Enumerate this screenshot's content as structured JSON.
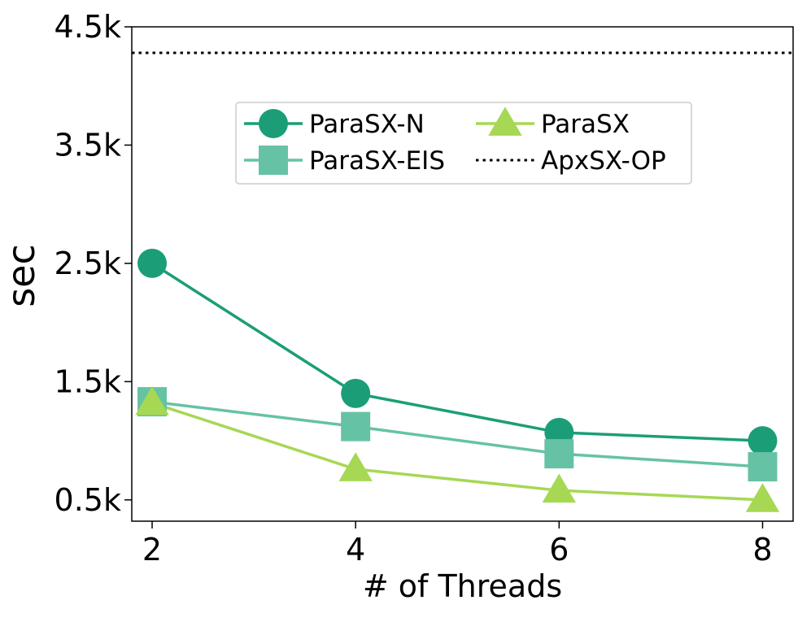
{
  "chart_data": {
    "type": "line",
    "title": "",
    "xlabel": "# of Threads",
    "ylabel": "sec",
    "x": [
      2,
      4,
      6,
      8
    ],
    "xticks": [
      "2",
      "4",
      "6",
      "8"
    ],
    "xlim": [
      1.8,
      8.3
    ],
    "yticks": [
      {
        "value": 500,
        "label": "0.5k"
      },
      {
        "value": 1500,
        "label": "1.5k"
      },
      {
        "value": 2500,
        "label": "2.5k"
      },
      {
        "value": 3500,
        "label": "3.5k"
      },
      {
        "value": 4500,
        "label": "4.5k"
      }
    ],
    "ylim": [
      320,
      4500
    ],
    "grid": false,
    "legend_position": "top-center",
    "series": [
      {
        "name": "ParaSX-N",
        "marker": "circle",
        "color": "#1b9e77",
        "values": [
          2500,
          1400,
          1070,
          1000
        ]
      },
      {
        "name": "ParaSX-EIS",
        "marker": "square",
        "color": "#66c2a5",
        "values": [
          1330,
          1120,
          890,
          780
        ]
      },
      {
        "name": "ParaSX",
        "marker": "triangle",
        "color": "#a6d854",
        "values": [
          1320,
          760,
          580,
          500
        ]
      }
    ],
    "reference_lines": [
      {
        "name": "ApxSX-OP",
        "style": "dotted",
        "color": "#000000",
        "value": 4280
      }
    ]
  }
}
